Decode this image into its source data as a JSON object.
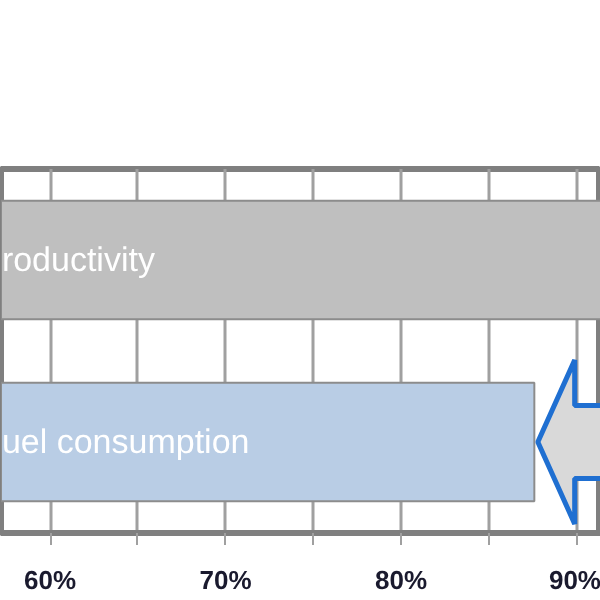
{
  "chart_data": {
    "type": "bar",
    "orientation": "horizontal",
    "categories": [
      "roductivity",
      "uel consumption"
    ],
    "colors": [
      "#bfbfbf",
      "#b9cde5"
    ],
    "values": [
      91.4,
      87.6
    ],
    "xlim": [
      57.2,
      91.4
    ],
    "xticks": [
      {
        "value": 60,
        "label": "60%"
      },
      {
        "value": 65,
        "label": null
      },
      {
        "value": 70,
        "label": "70%"
      },
      {
        "value": 75,
        "label": null
      },
      {
        "value": 80,
        "label": "80%"
      },
      {
        "value": 85,
        "label": null
      },
      {
        "value": 90,
        "label": "90%"
      }
    ],
    "grid": "x"
  }
}
